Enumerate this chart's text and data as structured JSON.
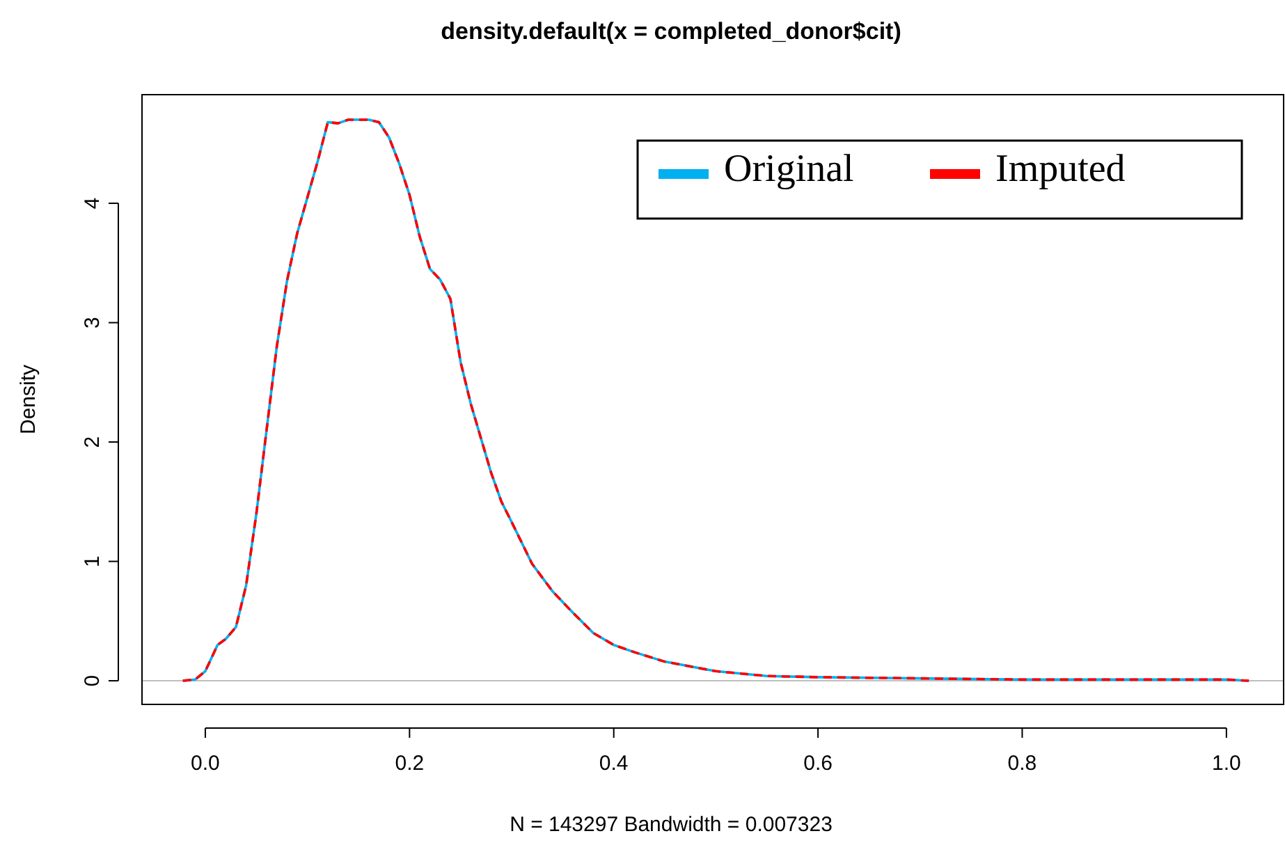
{
  "chart_data": {
    "type": "line",
    "title": "density.default(x = completed_donor$cit)",
    "xlabel": "N = 143297   Bandwidth = 0.007323",
    "ylabel": "Density",
    "x": [
      -0.022,
      -0.01,
      0,
      0.012,
      0.02,
      0.03,
      0.04,
      0.05,
      0.06,
      0.07,
      0.08,
      0.09,
      0.1,
      0.11,
      0.12,
      0.13,
      0.14,
      0.15,
      0.16,
      0.17,
      0.18,
      0.19,
      0.2,
      0.21,
      0.22,
      0.23,
      0.24,
      0.25,
      0.26,
      0.27,
      0.28,
      0.29,
      0.3,
      0.32,
      0.34,
      0.36,
      0.38,
      0.4,
      0.42,
      0.45,
      0.5,
      0.55,
      0.6,
      0.7,
      0.8,
      0.9,
      1,
      1.022
    ],
    "series": [
      {
        "name": "Original",
        "color": "#00b0f0",
        "line_style": "solid",
        "values": [
          0,
          0.01,
          0.08,
          0.3,
          0.35,
          0.45,
          0.8,
          1.4,
          2.1,
          2.8,
          3.35,
          3.75,
          4.05,
          4.35,
          4.68,
          4.67,
          4.7,
          4.7,
          4.7,
          4.68,
          4.55,
          4.33,
          4.07,
          3.72,
          3.45,
          3.36,
          3.2,
          2.67,
          2.32,
          2.03,
          1.74,
          1.5,
          1.33,
          0.98,
          0.75,
          0.57,
          0.4,
          0.3,
          0.24,
          0.16,
          0.08,
          0.04,
          0.03,
          0.02,
          0.01,
          0.01,
          0.01,
          0
        ]
      },
      {
        "name": "Imputed",
        "color": "#ff0000",
        "line_style": "dashed",
        "values": [
          0,
          0.01,
          0.08,
          0.3,
          0.35,
          0.45,
          0.8,
          1.4,
          2.1,
          2.8,
          3.35,
          3.75,
          4.05,
          4.35,
          4.68,
          4.67,
          4.7,
          4.7,
          4.7,
          4.68,
          4.55,
          4.33,
          4.07,
          3.72,
          3.45,
          3.36,
          3.2,
          2.67,
          2.32,
          2.03,
          1.74,
          1.5,
          1.33,
          0.98,
          0.75,
          0.57,
          0.4,
          0.3,
          0.24,
          0.16,
          0.08,
          0.04,
          0.03,
          0.02,
          0.01,
          0.01,
          0.01,
          0
        ]
      }
    ],
    "xlim": [
      -0.062,
      1.056
    ],
    "ylim": [
      -0.198,
      4.91
    ],
    "xticks": [
      {
        "value": 0,
        "label": "0.0"
      },
      {
        "value": 0.2,
        "label": "0.2"
      },
      {
        "value": 0.4,
        "label": "0.4"
      },
      {
        "value": 0.6,
        "label": "0.6"
      },
      {
        "value": 0.8,
        "label": "0.8"
      },
      {
        "value": 1,
        "label": "1.0"
      }
    ],
    "yticks": [
      0,
      1,
      2,
      3,
      4
    ],
    "ref_lines": [
      {
        "axis": "y",
        "value": 0,
        "color": "#bebebe"
      }
    ],
    "legend": "top right",
    "grid": false
  }
}
